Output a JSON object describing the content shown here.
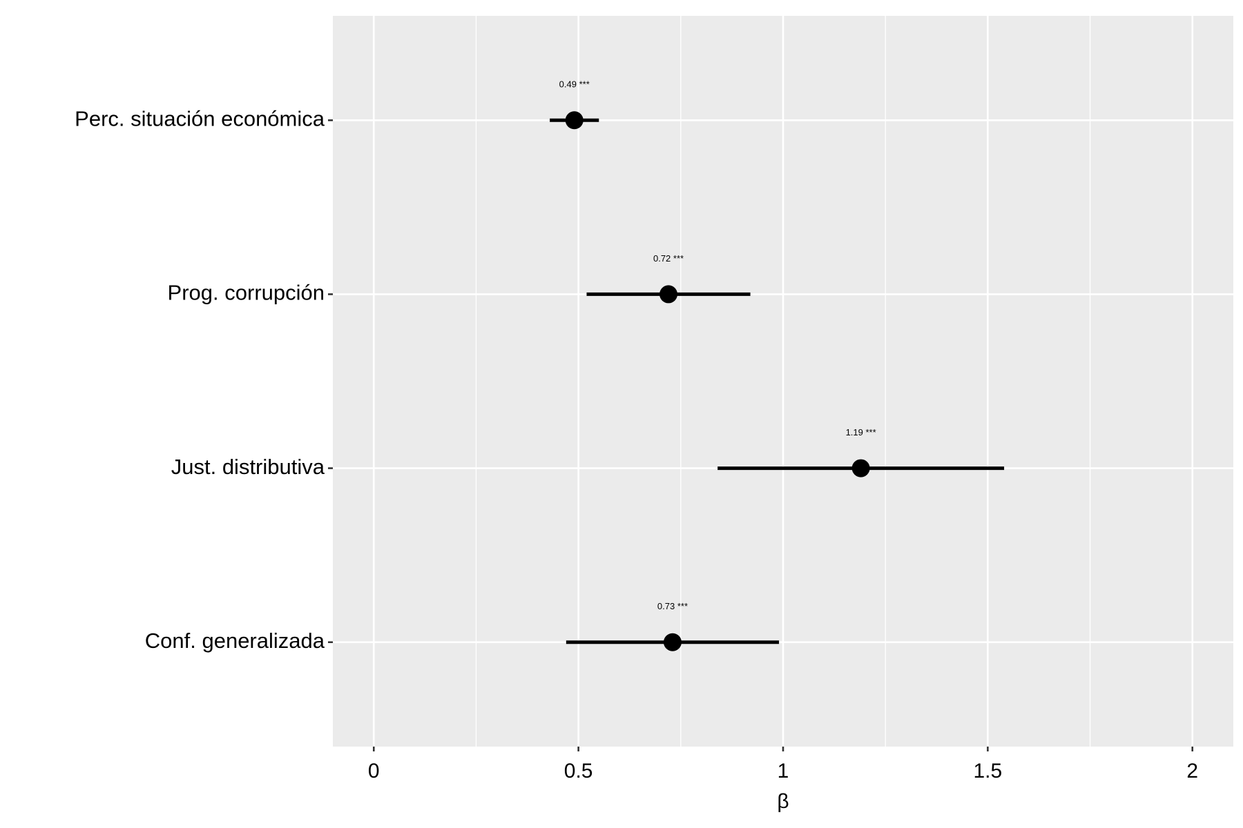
{
  "chart_data": {
    "type": "pointrange",
    "categories": [
      "Perc. situación económica",
      "Prog. corrupción",
      "Just. distributiva",
      "Conf. generalizada"
    ],
    "values": [
      0.49,
      0.72,
      1.19,
      0.73
    ],
    "value_labels": [
      "0.49 ***",
      "0.72 ***",
      "1.19 ***",
      "0.73 ***"
    ],
    "lower": [
      0.43,
      0.52,
      0.84,
      0.47
    ],
    "upper": [
      0.55,
      0.92,
      1.54,
      0.99
    ],
    "color": "#000000",
    "xlabel": "β",
    "xlim": [
      -0.1,
      2.1
    ],
    "xticks": [
      0,
      0.5,
      1,
      1.5,
      2
    ],
    "x_minor_ticks": [
      0.25,
      0.75,
      1.25,
      1.75
    ],
    "grid": true
  }
}
